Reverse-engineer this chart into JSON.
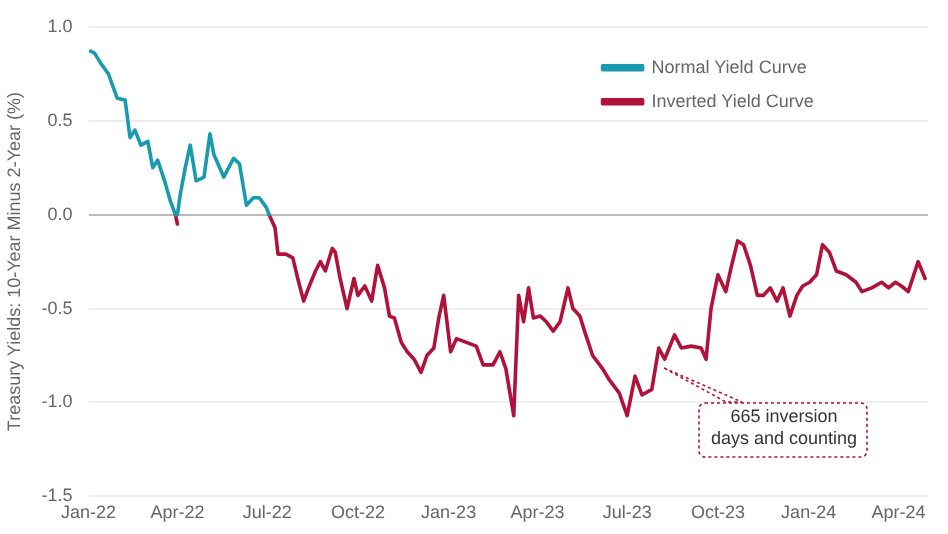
{
  "chart_data": {
    "type": "line",
    "ylabel": "Treasury Yields: 10-Year Minus 2-Year (%)",
    "xlim": [
      "2022-01-01",
      "2024-05-01"
    ],
    "xticks": [
      {
        "value": "2022-01-01",
        "label": "Jan-22"
      },
      {
        "value": "2022-04-01",
        "label": "Apr-22"
      },
      {
        "value": "2022-07-01",
        "label": "Jul-22"
      },
      {
        "value": "2022-10-01",
        "label": "Oct-22"
      },
      {
        "value": "2023-01-01",
        "label": "Jan-23"
      },
      {
        "value": "2023-04-01",
        "label": "Apr-23"
      },
      {
        "value": "2023-07-01",
        "label": "Jul-23"
      },
      {
        "value": "2023-10-01",
        "label": "Oct-23"
      },
      {
        "value": "2024-01-01",
        "label": "Jan-24"
      },
      {
        "value": "2024-04-01",
        "label": "Apr-24"
      }
    ],
    "ylim": [
      -1.5,
      1.0
    ],
    "yticks": [
      {
        "value": -1.5,
        "label": "-1.5"
      },
      {
        "value": -1,
        "label": "-1.0"
      },
      {
        "value": -0.5,
        "label": "-0.5"
      },
      {
        "value": 0,
        "label": "0.0"
      },
      {
        "value": 0.5,
        "label": "0.5"
      },
      {
        "value": 1,
        "label": "1.0"
      }
    ],
    "grid": "y",
    "legend": "top right",
    "marker": "none",
    "line_style": "solid",
    "series": [
      {
        "name": "Normal Yield Curve",
        "color": "#1a9aae",
        "x": [
          "2022-01-03",
          "2022-01-07",
          "2022-01-14",
          "2022-01-21",
          "2022-01-30",
          "2022-02-07",
          "2022-02-12",
          "2022-02-17",
          "2022-02-23",
          "2022-03-02",
          "2022-03-07",
          "2022-03-12",
          "2022-03-19",
          "2022-03-25",
          "2022-03-30",
          "2022-04-01",
          "2022-04-04",
          "2022-04-09",
          "2022-04-14",
          "2022-04-20",
          "2022-04-28",
          "2022-05-04",
          "2022-05-08",
          "2022-05-18",
          "2022-05-28",
          "2022-06-03",
          "2022-06-10",
          "2022-06-17",
          "2022-06-23",
          "2022-06-30",
          "2022-07-03"
        ],
        "values": [
          0.87,
          0.86,
          0.8,
          0.75,
          0.62,
          0.61,
          0.41,
          0.45,
          0.37,
          0.39,
          0.25,
          0.29,
          0.18,
          0.07,
          0.0,
          0.0,
          0.11,
          0.25,
          0.37,
          0.18,
          0.2,
          0.43,
          0.32,
          0.2,
          0.3,
          0.27,
          0.05,
          0.09,
          0.09,
          0.04,
          0.0
        ]
      },
      {
        "name": "Inverted Yield Curve",
        "color": "#b0123a",
        "x": [
          "2022-03-30",
          "2022-04-01",
          "2022-04-02",
          "2022-07-03",
          "2022-07-09",
          "2022-07-12",
          "2022-07-20",
          "2022-07-27",
          "2022-08-02",
          "2022-08-07",
          "2022-08-12",
          "2022-08-19",
          "2022-08-24",
          "2022-08-29",
          "2022-09-05",
          "2022-09-08",
          "2022-09-13",
          "2022-09-20",
          "2022-09-27",
          "2022-10-01",
          "2022-10-08",
          "2022-10-15",
          "2022-10-21",
          "2022-10-28",
          "2022-11-02",
          "2022-11-07",
          "2022-11-14",
          "2022-11-20",
          "2022-11-27",
          "2022-12-04",
          "2022-12-10",
          "2022-12-17",
          "2022-12-22",
          "2022-12-27",
          "2023-01-03",
          "2023-01-09",
          "2023-01-19",
          "2023-01-29",
          "2023-02-05",
          "2023-02-15",
          "2023-02-22",
          "2023-02-28",
          "2023-03-08",
          "2023-03-13",
          "2023-03-18",
          "2023-03-23",
          "2023-03-28",
          "2023-04-04",
          "2023-04-10",
          "2023-04-17",
          "2023-04-24",
          "2023-05-02",
          "2023-05-07",
          "2023-05-14",
          "2023-05-20",
          "2023-05-27",
          "2023-06-06",
          "2023-06-13",
          "2023-06-23",
          "2023-07-01",
          "2023-07-09",
          "2023-07-16",
          "2023-07-26",
          "2023-08-02",
          "2023-08-08",
          "2023-08-18",
          "2023-08-25",
          "2023-09-04",
          "2023-09-14",
          "2023-09-19",
          "2023-09-24",
          "2023-10-01",
          "2023-10-09",
          "2023-10-14",
          "2023-10-21",
          "2023-10-27",
          "2023-11-03",
          "2023-11-10",
          "2023-11-16",
          "2023-11-23",
          "2023-11-30",
          "2023-12-06",
          "2023-12-13",
          "2023-12-20",
          "2023-12-26",
          "2024-01-02",
          "2024-01-09",
          "2024-01-15",
          "2024-01-22",
          "2024-01-29",
          "2024-02-08",
          "2024-02-18",
          "2024-02-24",
          "2024-03-05",
          "2024-03-15",
          "2024-03-22",
          "2024-03-29",
          "2024-04-04",
          "2024-04-11",
          "2024-04-21",
          "2024-04-28"
        ],
        "values": [
          0.0,
          -0.05,
          null,
          0.0,
          -0.07,
          -0.21,
          -0.21,
          -0.23,
          -0.36,
          -0.46,
          -0.39,
          -0.3,
          -0.25,
          -0.3,
          -0.18,
          -0.2,
          -0.34,
          -0.5,
          -0.34,
          -0.43,
          -0.38,
          -0.46,
          -0.27,
          -0.39,
          -0.54,
          -0.55,
          -0.68,
          -0.73,
          -0.77,
          -0.84,
          -0.75,
          -0.71,
          -0.55,
          -0.43,
          -0.73,
          -0.66,
          -0.68,
          -0.7,
          -0.8,
          -0.8,
          -0.73,
          -0.82,
          -1.07,
          -0.43,
          -0.57,
          -0.39,
          -0.55,
          -0.54,
          -0.57,
          -0.62,
          -0.57,
          -0.39,
          -0.5,
          -0.54,
          -0.64,
          -0.75,
          -0.82,
          -0.88,
          -0.95,
          -1.07,
          -0.86,
          -0.96,
          -0.93,
          -0.71,
          -0.77,
          -0.64,
          -0.71,
          -0.7,
          -0.71,
          -0.77,
          -0.5,
          -0.32,
          -0.41,
          -0.29,
          -0.14,
          -0.16,
          -0.27,
          -0.43,
          -0.43,
          -0.39,
          -0.46,
          -0.39,
          -0.54,
          -0.43,
          -0.38,
          -0.36,
          -0.32,
          -0.16,
          -0.2,
          -0.3,
          -0.32,
          -0.36,
          -0.41,
          -0.39,
          -0.36,
          -0.39,
          -0.36,
          -0.38,
          -0.41,
          -0.25,
          -0.34
        ]
      }
    ],
    "annotations": [
      "665 inversion days and counting"
    ]
  }
}
